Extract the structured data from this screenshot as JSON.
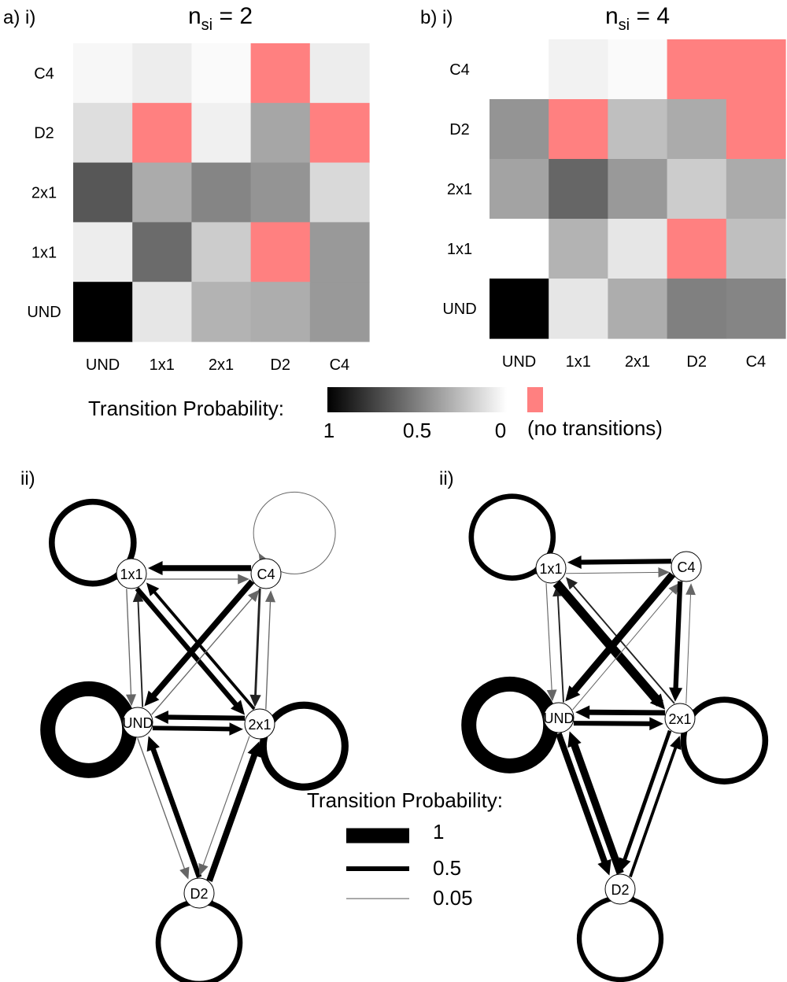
{
  "chart_data": [
    {
      "type": "heatmap",
      "panel_label": "a) i)",
      "title_main": "n",
      "title_sub": "si",
      "title_rest": " = 2",
      "rows": [
        "C4",
        "D2",
        "2x1",
        "1x1",
        "UND"
      ],
      "columns": [
        "UND",
        "1x1",
        "2x1",
        "D2",
        "C4"
      ],
      "values": [
        [
          0.03,
          0.07,
          0.02,
          null,
          0.07
        ],
        [
          0.13,
          null,
          0.06,
          0.35,
          null
        ],
        [
          0.66,
          0.33,
          0.48,
          0.42,
          0.15
        ],
        [
          0.07,
          0.58,
          0.2,
          null,
          0.4
        ],
        [
          1.0,
          0.1,
          0.3,
          0.32,
          0.4
        ]
      ]
    },
    {
      "type": "heatmap",
      "panel_label": "b) i)",
      "title_main": "n",
      "title_sub": "si",
      "title_rest": " = 4",
      "rows": [
        "C4",
        "D2",
        "2x1",
        "1x1",
        "UND"
      ],
      "columns": [
        "UND",
        "1x1",
        "2x1",
        "D2",
        "C4"
      ],
      "values": [
        [
          0.0,
          0.05,
          0.02,
          null,
          null
        ],
        [
          0.42,
          null,
          0.25,
          0.33,
          null
        ],
        [
          0.36,
          0.6,
          0.4,
          0.2,
          0.33
        ],
        [
          0.0,
          0.3,
          0.1,
          null,
          0.25
        ],
        [
          1.0,
          0.1,
          0.32,
          0.5,
          0.48
        ]
      ]
    }
  ],
  "colorbar": {
    "label": "Transition Probability:",
    "ticks": [
      "1",
      "0.5",
      "0"
    ],
    "no_transition_label": "(no transitions)",
    "no_transition_color": "#ff8080"
  },
  "networks": [
    {
      "panel_label": "ii)",
      "nodes": [
        "1x1",
        "C4",
        "UND",
        "2x1",
        "D2"
      ],
      "edges": [
        {
          "from": "1x1",
          "to": "1x1",
          "p": 0.4
        },
        {
          "from": "C4",
          "to": "C4",
          "p": 0.03
        },
        {
          "from": "UND",
          "to": "UND",
          "p": 1.0
        },
        {
          "from": "2x1",
          "to": "2x1",
          "p": 0.48
        },
        {
          "from": "D2",
          "to": "D2",
          "p": 0.35
        },
        {
          "from": "1x1",
          "to": "C4",
          "p": 0.07
        },
        {
          "from": "C4",
          "to": "1x1",
          "p": 0.4
        },
        {
          "from": "1x1",
          "to": "UND",
          "p": 0.07
        },
        {
          "from": "UND",
          "to": "1x1",
          "p": 0.1
        },
        {
          "from": "1x1",
          "to": "2x1",
          "p": 0.33
        },
        {
          "from": "2x1",
          "to": "1x1",
          "p": 0.2
        },
        {
          "from": "C4",
          "to": "UND",
          "p": 0.4
        },
        {
          "from": "UND",
          "to": "C4",
          "p": 0.07
        },
        {
          "from": "C4",
          "to": "2x1",
          "p": 0.15
        },
        {
          "from": "2x1",
          "to": "C4",
          "p": 0.07
        },
        {
          "from": "UND",
          "to": "2x1",
          "p": 0.3
        },
        {
          "from": "2x1",
          "to": "UND",
          "p": 0.33
        },
        {
          "from": "UND",
          "to": "D2",
          "p": 0.07
        },
        {
          "from": "D2",
          "to": "UND",
          "p": 0.35
        },
        {
          "from": "2x1",
          "to": "D2",
          "p": 0.06
        },
        {
          "from": "D2",
          "to": "2x1",
          "p": 0.42
        }
      ]
    },
    {
      "panel_label": "ii)",
      "nodes": [
        "1x1",
        "C4",
        "UND",
        "2x1",
        "D2"
      ],
      "edges": [
        {
          "from": "1x1",
          "to": "1x1",
          "p": 0.35
        },
        {
          "from": "UND",
          "to": "UND",
          "p": 1.0
        },
        {
          "from": "2x1",
          "to": "2x1",
          "p": 0.4
        },
        {
          "from": "D2",
          "to": "D2",
          "p": 0.33
        },
        {
          "from": "1x1",
          "to": "C4",
          "p": 0.05
        },
        {
          "from": "C4",
          "to": "1x1",
          "p": 0.33
        },
        {
          "from": "1x1",
          "to": "UND",
          "p": 0.06
        },
        {
          "from": "UND",
          "to": "1x1",
          "p": 0.1
        },
        {
          "from": "1x1",
          "to": "2x1",
          "p": 0.6
        },
        {
          "from": "2x1",
          "to": "1x1",
          "p": 0.1
        },
        {
          "from": "C4",
          "to": "UND",
          "p": 0.48
        },
        {
          "from": "UND",
          "to": "C4",
          "p": 0.05
        },
        {
          "from": "C4",
          "to": "2x1",
          "p": 0.33
        },
        {
          "from": "2x1",
          "to": "C4",
          "p": 0.05
        },
        {
          "from": "UND",
          "to": "2x1",
          "p": 0.32
        },
        {
          "from": "2x1",
          "to": "UND",
          "p": 0.36
        },
        {
          "from": "UND",
          "to": "D2",
          "p": 0.42
        },
        {
          "from": "D2",
          "to": "UND",
          "p": 0.5
        },
        {
          "from": "2x1",
          "to": "D2",
          "p": 0.25
        },
        {
          "from": "D2",
          "to": "2x1",
          "p": 0.2
        }
      ]
    }
  ],
  "edge_legend": {
    "title": "Transition Probability:",
    "entries": [
      {
        "label": "1",
        "p": 1.0
      },
      {
        "label": "0.5",
        "p": 0.5
      },
      {
        "label": "0.05",
        "p": 0.05
      }
    ]
  }
}
